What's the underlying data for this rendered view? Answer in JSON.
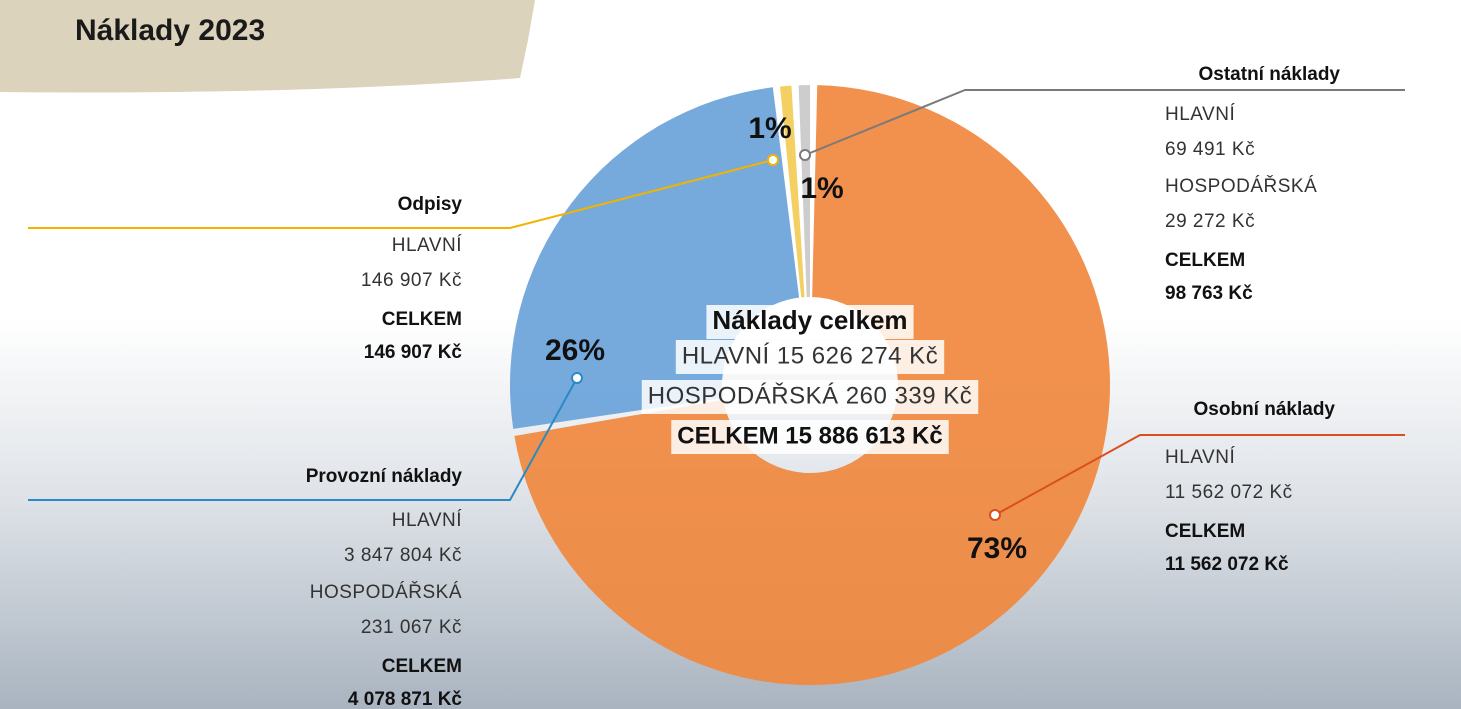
{
  "chart_data": {
    "type": "pie",
    "title": "Náklady 2023",
    "slices": [
      {
        "name": "Ostatní náklady",
        "value": 1,
        "value_label": "1%",
        "color": "#c9c9c9",
        "line_color": "#7a7a7a",
        "rows": [
          {
            "label": "HLAVNÍ",
            "amount": "69 491 Kč"
          },
          {
            "label": "HOSPODÁŘSKÁ",
            "amount": "29 272 Kč"
          }
        ],
        "total": {
          "label": "CELKEM",
          "amount": "98 763 Kč"
        }
      },
      {
        "name": "Osobní náklady",
        "value": 73,
        "value_label": "73%",
        "color": "#f0883e",
        "line_color": "#d9501e",
        "rows": [
          {
            "label": "HLAVNÍ",
            "amount": "11 562 072 Kč"
          }
        ],
        "total": {
          "label": "CELKEM",
          "amount": "11 562 072 Kč"
        }
      },
      {
        "name": "Provozní náklady",
        "value": 26,
        "value_label": "26%",
        "color": "#6aa3da",
        "line_color": "#2a8ac6",
        "rows": [
          {
            "label": "HLAVNÍ",
            "amount": "3 847 804 Kč"
          },
          {
            "label": "HOSPODÁŘSKÁ",
            "amount": "231 067 Kč"
          }
        ],
        "total": {
          "label": "CELKEM",
          "amount": "4 078 871 Kč"
        }
      },
      {
        "name": "Odpisy",
        "value": 1,
        "value_label": "1%",
        "color": "#f3cb55",
        "line_color": "#f0b400",
        "rows": [
          {
            "label": "HLAVNÍ",
            "amount": "146 907 Kč"
          }
        ],
        "total": {
          "label": "CELKEM",
          "amount": "146 907 Kč"
        }
      }
    ],
    "center": {
      "title": "Náklady celkem",
      "lines": [
        "HLAVNÍ 15 626 274 Kč",
        "HOSPODÁŘSKÁ 260 339 Kč"
      ],
      "total": "CELKEM 15 886 613 Kč"
    }
  }
}
